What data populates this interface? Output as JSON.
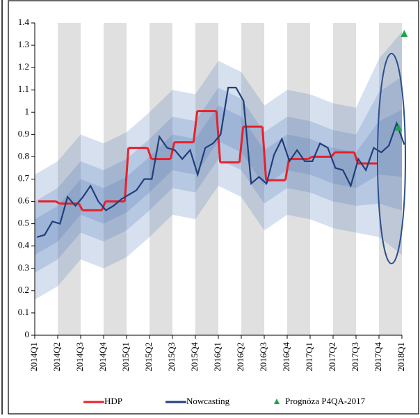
{
  "chart_data": {
    "type": "line",
    "xlim": [
      0,
      16
    ],
    "xticks": [
      {
        "value": 0,
        "label": "2014Q1"
      },
      {
        "value": 1,
        "label": "2014Q2"
      },
      {
        "value": 2,
        "label": "2014Q3"
      },
      {
        "value": 3,
        "label": "2014Q4"
      },
      {
        "value": 4,
        "label": "2015Q1"
      },
      {
        "value": 5,
        "label": "2015Q2"
      },
      {
        "value": 6,
        "label": "2015Q3"
      },
      {
        "value": 7,
        "label": "2015Q4"
      },
      {
        "value": 8,
        "label": "2016Q1"
      },
      {
        "value": 9,
        "label": "2016Q2"
      },
      {
        "value": 10,
        "label": "2016Q3"
      },
      {
        "value": 11,
        "label": "2016Q4"
      },
      {
        "value": 12,
        "label": "2017Q1"
      },
      {
        "value": 13,
        "label": "2017Q2"
      },
      {
        "value": 14,
        "label": "2017Q3"
      },
      {
        "value": 15,
        "label": "2017Q4"
      },
      {
        "value": 16,
        "label": "2018Q1"
      }
    ],
    "ylim": [
      0,
      1.4
    ],
    "yticks": [
      0,
      0.1,
      0.2,
      0.3,
      0.4,
      0.5,
      0.6,
      0.7,
      0.8,
      0.9,
      1,
      1.1,
      1.2,
      1.3,
      1.4
    ],
    "bands": [
      {
        "color": "#4a72b8",
        "x": [
          0,
          1,
          2,
          3,
          4,
          5,
          6,
          7,
          8,
          9,
          10,
          11,
          12,
          13,
          14,
          15,
          16
        ],
        "lower": [
          0.16,
          0.22,
          0.34,
          0.3,
          0.35,
          0.44,
          0.54,
          0.52,
          0.67,
          0.62,
          0.47,
          0.54,
          0.52,
          0.48,
          0.46,
          0.44,
          0.36
        ],
        "upper": [
          0.72,
          0.78,
          0.9,
          0.86,
          0.91,
          1.0,
          1.1,
          1.08,
          1.23,
          1.18,
          1.03,
          1.1,
          1.08,
          1.04,
          1.02,
          1.24,
          1.36
        ]
      },
      {
        "color": "#4a72b8",
        "x": [
          0,
          1,
          2,
          3,
          4,
          5,
          6,
          7,
          8,
          9,
          10,
          11,
          12,
          13,
          14,
          15,
          16
        ],
        "lower": [
          0.28,
          0.34,
          0.46,
          0.42,
          0.47,
          0.56,
          0.66,
          0.64,
          0.79,
          0.74,
          0.59,
          0.66,
          0.64,
          0.6,
          0.58,
          0.59,
          0.56
        ],
        "upper": [
          0.6,
          0.66,
          0.78,
          0.74,
          0.79,
          0.88,
          0.98,
          0.96,
          1.11,
          1.06,
          0.91,
          0.98,
          0.96,
          0.92,
          0.9,
          1.09,
          1.16
        ]
      },
      {
        "color": "#4a72b8",
        "x": [
          0,
          1,
          2,
          3,
          4,
          5,
          6,
          7,
          8,
          9,
          10,
          11,
          12,
          13,
          14,
          15,
          16
        ],
        "lower": [
          0.36,
          0.42,
          0.54,
          0.5,
          0.55,
          0.64,
          0.74,
          0.72,
          0.87,
          0.82,
          0.67,
          0.74,
          0.72,
          0.68,
          0.66,
          0.72,
          0.71
        ],
        "upper": [
          0.52,
          0.58,
          0.7,
          0.66,
          0.71,
          0.8,
          0.9,
          0.88,
          1.03,
          0.98,
          0.83,
          0.9,
          0.88,
          0.84,
          0.82,
          0.96,
          1.01
        ]
      }
    ],
    "series": [
      {
        "name": "HDP",
        "color": "#e8202a",
        "style": "step",
        "x": [
          0,
          1,
          2,
          3,
          4,
          5,
          6,
          7,
          8,
          9,
          10,
          11,
          12,
          13,
          14
        ],
        "values": [
          0.6,
          0.59,
          0.56,
          0.6,
          0.84,
          0.79,
          0.865,
          1.005,
          0.775,
          0.935,
          0.695,
          0.79,
          0.8,
          0.82,
          0.77
        ]
      },
      {
        "name": "Nowcasting",
        "color": "#1f3f7a",
        "style": "line",
        "x": [
          0.1,
          0.43,
          0.77,
          1.1,
          1.43,
          1.77,
          2.1,
          2.43,
          2.77,
          3.1,
          3.43,
          3.77,
          4.1,
          4.43,
          4.77,
          5.1,
          5.43,
          5.77,
          6.1,
          6.43,
          6.77,
          7.1,
          7.43,
          7.77,
          8.1,
          8.43,
          8.77,
          9.1,
          9.43,
          9.77,
          10.1,
          10.43,
          10.77,
          11.1,
          11.43,
          11.77,
          12.1,
          12.43,
          12.77,
          13.1,
          13.43,
          13.77,
          14.1,
          14.43,
          14.77,
          15.1,
          15.43,
          15.77,
          16.1
        ],
        "values": [
          0.44,
          0.45,
          0.51,
          0.5,
          0.62,
          0.58,
          0.62,
          0.67,
          0.6,
          0.56,
          0.58,
          0.61,
          0.63,
          0.65,
          0.7,
          0.7,
          0.89,
          0.84,
          0.83,
          0.79,
          0.83,
          0.72,
          0.84,
          0.86,
          0.9,
          1.11,
          1.11,
          1.05,
          0.68,
          0.71,
          0.68,
          0.81,
          0.88,
          0.78,
          0.83,
          0.78,
          0.78,
          0.86,
          0.84,
          0.75,
          0.74,
          0.67,
          0.79,
          0.74,
          0.84,
          0.82,
          0.85,
          0.95,
          0.855
        ]
      },
      {
        "name": "Prognóza P4QA-2017",
        "color": "#1aa64a",
        "style": "triangle",
        "x": [
          15.85,
          16.1
        ],
        "values": [
          0.93,
          1.35
        ]
      }
    ]
  }
}
